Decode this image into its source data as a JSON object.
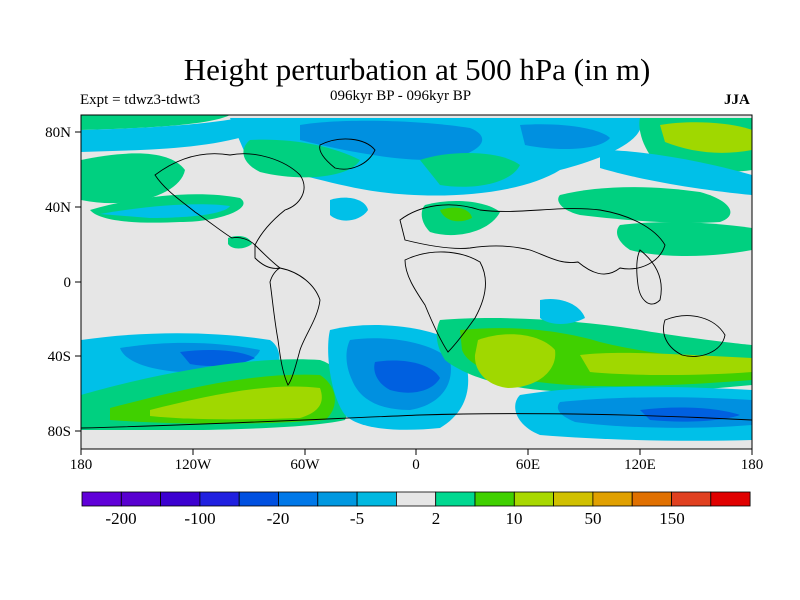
{
  "header": {
    "title": "Height perturbation at 500 hPa (in m)",
    "subtitle": "096kyr BP - 096kyr BP",
    "left_label": "Expt = tdwz3-tdwt3",
    "right_label": "JJA"
  },
  "map": {
    "lat_ticks": [
      "80N",
      "40N",
      "0",
      "40S",
      "80S"
    ],
    "lon_ticks": [
      "180",
      "120W",
      "60W",
      "0",
      "60E",
      "120E",
      "180"
    ],
    "colors": {
      "neutral": "#e6e6e6",
      "light_cyan": "#00c0e8",
      "mid_blue": "#0090e0",
      "blue": "#0060e0",
      "light_green": "#00d080",
      "green": "#40d000",
      "yellow_green": "#a0d800"
    }
  },
  "colorbar": {
    "colors": [
      "#6000d8",
      "#5800d0",
      "#3c00d0",
      "#2020e0",
      "#0050e0",
      "#0078e8",
      "#0098e0",
      "#00b8e0",
      "#e6e6e6",
      "#00d890",
      "#40d000",
      "#a8d800",
      "#d0c000",
      "#e0a000",
      "#e07000",
      "#e04020",
      "#e00000"
    ],
    "labels": [
      "-200",
      "-100",
      "-20",
      "-5",
      "2",
      "10",
      "50",
      "150"
    ]
  }
}
